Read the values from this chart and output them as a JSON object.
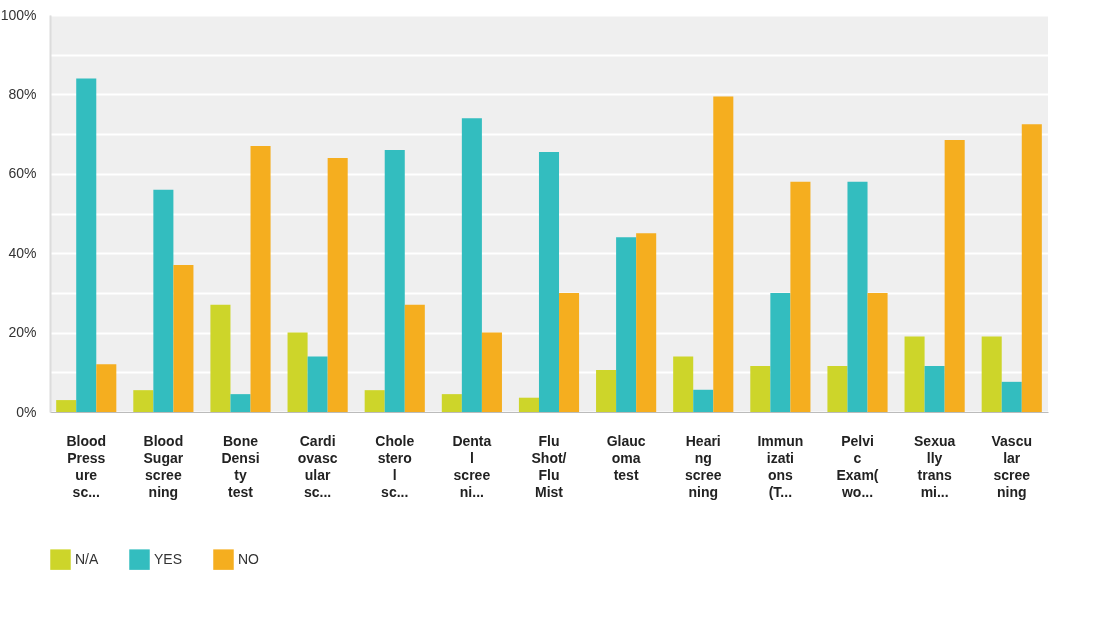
{
  "chart_data": {
    "type": "bar",
    "categories": [
      "Blood Pressure sc...",
      "Blood Sugar screening",
      "Bone Density test",
      "Cardiovascular sc...",
      "Cholesterol sc...",
      "Dental screeni...",
      "Flu Shot/Flu Mist",
      "Glaucoma test",
      "Hearing screening",
      "Immunizations (T...",
      "Pelvic Exam(wo...",
      "Sexually transmi...",
      "Vascular screening"
    ],
    "series": [
      {
        "name": "N/A",
        "color": "#cdd52a",
        "values": [
          3,
          5.5,
          27,
          20,
          5.5,
          4.5,
          3.6,
          10.6,
          14,
          11.6,
          11.6,
          19,
          19
        ]
      },
      {
        "name": "YES",
        "color": "#33bdbf",
        "values": [
          84,
          56,
          4.5,
          14,
          66,
          74,
          65.5,
          44,
          5.6,
          30,
          58,
          11.6,
          7.6
        ]
      },
      {
        "name": "NO",
        "color": "#f5ae1f",
        "values": [
          12,
          37,
          67,
          64,
          27,
          20,
          30,
          45,
          79.5,
          58,
          30,
          68.5,
          72.5
        ]
      }
    ],
    "ylim": [
      0,
      100
    ],
    "yticks": [
      {
        "value": 0,
        "label": "0%"
      },
      {
        "value": 10,
        "label": null
      },
      {
        "value": 20,
        "label": "20%"
      },
      {
        "value": 30,
        "label": null
      },
      {
        "value": 40,
        "label": "40%"
      },
      {
        "value": 50,
        "label": null
      },
      {
        "value": 60,
        "label": "60%"
      },
      {
        "value": 70,
        "label": null
      },
      {
        "value": 80,
        "label": "80%"
      },
      {
        "value": 90,
        "label": null
      },
      {
        "value": 100,
        "label": "100%"
      }
    ],
    "grid": "y",
    "legend": "bottom"
  }
}
